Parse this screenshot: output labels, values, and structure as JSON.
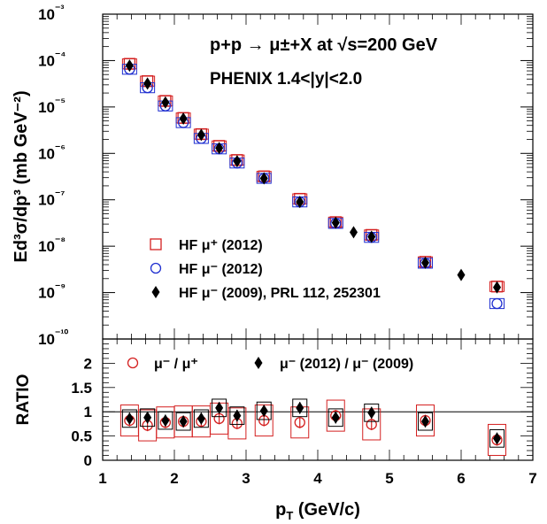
{
  "chart_data": [
    {
      "type": "scatter",
      "title": "p+p → μ±+X at √s=200 GeV",
      "subtitle": "PHENIX 1.4<|y|<2.0",
      "ylabel": "Ed³σ/dp³ (mb GeV⁻²)",
      "xlabel": "p_T (GeV/c)",
      "xlim": [
        1,
        7
      ],
      "ylim": [
        1e-10,
        0.001
      ],
      "yscale": "log",
      "y_tick_labels": [
        "10⁻¹⁰",
        "10⁻⁹",
        "10⁻⁸",
        "10⁻⁷",
        "10⁻⁶",
        "10⁻⁵",
        "10⁻⁴",
        "10⁻³"
      ],
      "legend_placement": "bottom-left",
      "series": [
        {
          "name": "HF μ⁺ (2012)",
          "color": "#d42020",
          "marker": "open-square",
          "x": [
            1.375,
            1.625,
            1.875,
            2.125,
            2.375,
            2.625,
            2.875,
            3.25,
            3.75,
            4.25,
            4.75,
            5.5,
            6.5
          ],
          "y": [
            8.5e-05,
            3.6e-05,
            1.35e-05,
            5.8e-06,
            2.6e-06,
            1.45e-06,
            7.2e-07,
            3.2e-07,
            1.05e-07,
            3.3e-08,
            1.75e-08,
            4.6e-09,
            1.35e-09
          ]
        },
        {
          "name": "HF μ⁻ (2012)",
          "color": "#1f2fd0",
          "marker": "open-circle",
          "x": [
            1.375,
            1.625,
            1.875,
            2.125,
            2.375,
            2.625,
            2.875,
            3.25,
            3.75,
            4.25,
            4.75,
            5.5,
            6.5
          ],
          "y": [
            6.5e-05,
            2.6e-05,
            1.05e-05,
            4.6e-06,
            2.1e-06,
            1.25e-06,
            6.2e-07,
            2.9e-07,
            9e-08,
            3.1e-08,
            1.55e-08,
            4.3e-09,
            5.8e-10
          ]
        },
        {
          "name": "HF μ⁻ (2009), PRL 112, 252301",
          "color": "#000000",
          "marker": "filled-diamond",
          "x": [
            1.375,
            1.625,
            1.875,
            2.125,
            2.375,
            2.625,
            2.875,
            3.25,
            3.75,
            4.25,
            4.5,
            4.75,
            5.5,
            6.0,
            6.5
          ],
          "y": [
            7.8e-05,
            3.2e-05,
            1.25e-05,
            5.6e-06,
            2.5e-06,
            1.3e-06,
            6.8e-07,
            2.9e-07,
            9e-08,
            3.2e-08,
            2e-08,
            1.6e-08,
            4.4e-09,
            2.4e-09,
            1.3e-09
          ]
        }
      ]
    },
    {
      "type": "scatter",
      "ylabel": "RATIO",
      "xlabel": "p_T (GeV/c)",
      "xlim": [
        1,
        7
      ],
      "ylim": [
        0,
        2.5
      ],
      "x_tick_labels": [
        "1",
        "2",
        "3",
        "4",
        "5",
        "6",
        "7"
      ],
      "y_tick_labels": [
        "0",
        "0.5",
        "1",
        "1.5",
        "2"
      ],
      "reference_line": 1,
      "legend_placement": "top",
      "series": [
        {
          "name": "μ⁻ / μ⁺",
          "color": "#d42020",
          "marker": "open-circle",
          "x": [
            1.375,
            1.625,
            1.875,
            2.125,
            2.375,
            2.625,
            2.875,
            3.25,
            3.75,
            4.25,
            4.75,
            5.5,
            6.5
          ],
          "y": [
            0.82,
            0.72,
            0.78,
            0.8,
            0.8,
            0.86,
            0.76,
            0.82,
            0.78,
            0.92,
            0.74,
            0.82,
            0.42
          ]
        },
        {
          "name": "μ⁻ (2012) / μ⁻ (2009)",
          "color": "#000000",
          "marker": "filled-diamond",
          "x": [
            1.375,
            1.625,
            1.875,
            2.125,
            2.375,
            2.625,
            2.875,
            3.25,
            3.75,
            4.25,
            4.75,
            5.5,
            6.5
          ],
          "y": [
            0.86,
            0.88,
            0.82,
            0.8,
            0.86,
            1.08,
            0.92,
            1.02,
            1.08,
            0.88,
            0.98,
            0.8,
            0.45
          ]
        }
      ]
    }
  ]
}
